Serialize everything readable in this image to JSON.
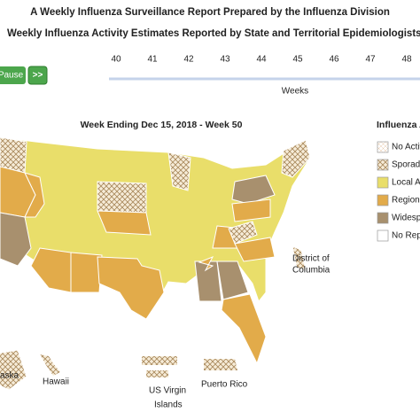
{
  "header": {
    "title": "A Weekly Influenza Surveillance Report Prepared by the Influenza Division",
    "subtitle": "Weekly Influenza Activity Estimates Reported by State and Territorial Epidemiologists*"
  },
  "controls": {
    "pause": "Pause",
    "next": ">>"
  },
  "timeline": {
    "weeks": [
      "40",
      "41",
      "42",
      "43",
      "44",
      "45",
      "46",
      "47",
      "48"
    ],
    "axis_label": "Weeks"
  },
  "map": {
    "title": "Week Ending Dec 15, 2018 - Week 50",
    "labels": {
      "dc_line1": "District of",
      "dc_line2": "Columbia",
      "alaska": "aska",
      "hawaii": "Hawaii",
      "usvi_line1": "US Virgin",
      "usvi_line2": "Islands",
      "puerto_rico": "Puerto Rico"
    }
  },
  "legend": {
    "title": "Influenza Ac",
    "items": [
      "No Activi",
      "Sporadi",
      "Local A",
      "Regiona",
      "Widesp",
      "No Repo"
    ]
  }
}
